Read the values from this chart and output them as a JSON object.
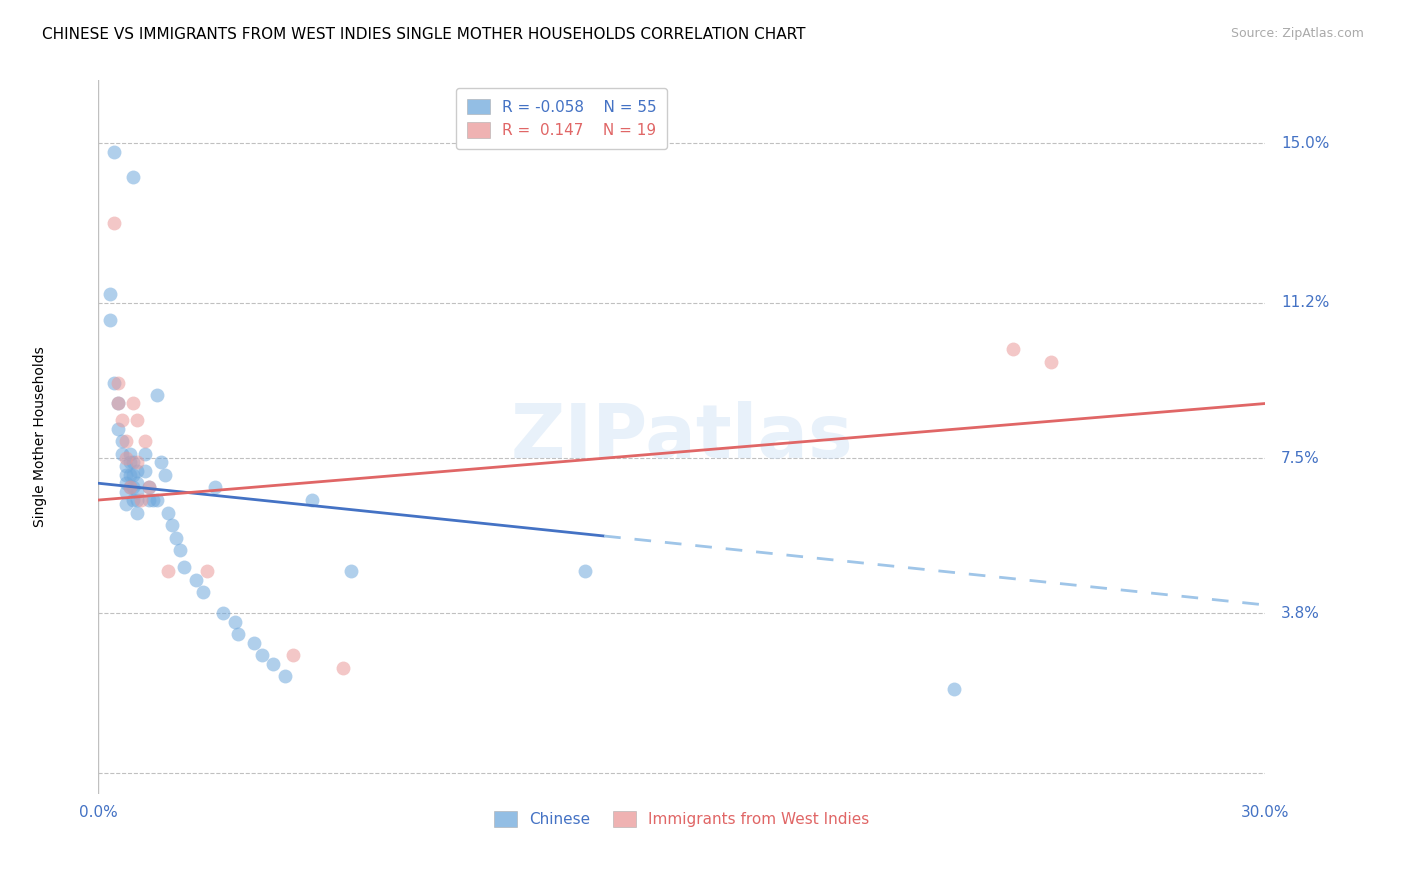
{
  "title": "CHINESE VS IMMIGRANTS FROM WEST INDIES SINGLE MOTHER HOUSEHOLDS CORRELATION CHART",
  "source": "Source: ZipAtlas.com",
  "ylabel": "Single Mother Households",
  "watermark": "ZIPatlas",
  "xlim": [
    0.0,
    0.3
  ],
  "ylim": [
    -0.005,
    0.165
  ],
  "ytick_vals": [
    0.0,
    0.038,
    0.075,
    0.112,
    0.15
  ],
  "ytick_labels": [
    "",
    "3.8%",
    "7.5%",
    "11.2%",
    "15.0%"
  ],
  "xtick_positions": [
    0.0,
    0.075,
    0.15,
    0.225,
    0.3
  ],
  "xtick_labels": [
    "0.0%",
    "",
    "",
    "",
    "30.0%"
  ],
  "label_chinese": "Chinese",
  "label_westindies": "Immigrants from West Indies",
  "color_chinese": "#6fa8dc",
  "color_westindies": "#ea9999",
  "trendline_chinese_solid_color": "#4472c4",
  "trendline_westindies_color": "#e06666",
  "trendline_chinese_dashed_color": "#9fc5e8",
  "background_color": "#ffffff",
  "grid_color": "#c0c0c0",
  "chinese_x": [
    0.004,
    0.009,
    0.003,
    0.003,
    0.004,
    0.005,
    0.005,
    0.006,
    0.006,
    0.007,
    0.007,
    0.007,
    0.007,
    0.007,
    0.008,
    0.008,
    0.008,
    0.008,
    0.009,
    0.009,
    0.009,
    0.009,
    0.01,
    0.01,
    0.01,
    0.01,
    0.01,
    0.012,
    0.012,
    0.013,
    0.013,
    0.014,
    0.015,
    0.015,
    0.016,
    0.017,
    0.018,
    0.019,
    0.02,
    0.021,
    0.022,
    0.025,
    0.027,
    0.03,
    0.032,
    0.035,
    0.036,
    0.04,
    0.042,
    0.045,
    0.048,
    0.055,
    0.065,
    0.125,
    0.22
  ],
  "chinese_y": [
    0.148,
    0.142,
    0.114,
    0.108,
    0.093,
    0.088,
    0.082,
    0.079,
    0.076,
    0.073,
    0.071,
    0.069,
    0.067,
    0.064,
    0.076,
    0.074,
    0.071,
    0.068,
    0.074,
    0.071,
    0.068,
    0.065,
    0.072,
    0.069,
    0.067,
    0.065,
    0.062,
    0.076,
    0.072,
    0.068,
    0.065,
    0.065,
    0.09,
    0.065,
    0.074,
    0.071,
    0.062,
    0.059,
    0.056,
    0.053,
    0.049,
    0.046,
    0.043,
    0.068,
    0.038,
    0.036,
    0.033,
    0.031,
    0.028,
    0.026,
    0.023,
    0.065,
    0.048,
    0.048,
    0.02
  ],
  "westindies_x": [
    0.004,
    0.005,
    0.005,
    0.006,
    0.007,
    0.007,
    0.008,
    0.009,
    0.01,
    0.01,
    0.011,
    0.012,
    0.013,
    0.018,
    0.028,
    0.05,
    0.063,
    0.235,
    0.245
  ],
  "westindies_y": [
    0.131,
    0.093,
    0.088,
    0.084,
    0.079,
    0.075,
    0.068,
    0.088,
    0.084,
    0.074,
    0.065,
    0.079,
    0.068,
    0.048,
    0.048,
    0.028,
    0.025,
    0.101,
    0.098
  ],
  "ch_trend_x0": 0.0,
  "ch_trend_y0": 0.069,
  "ch_trend_x_solid_end": 0.13,
  "ch_trend_x_dashed_end": 0.3,
  "ch_trend_y_end": 0.04,
  "wi_trend_x0": 0.0,
  "wi_trend_y0": 0.065,
  "wi_trend_x1": 0.3,
  "wi_trend_y1": 0.088,
  "marker_size": 100,
  "marker_alpha": 0.55,
  "title_fontsize": 11,
  "axis_label_fontsize": 10,
  "tick_fontsize": 11,
  "legend_fontsize": 11,
  "source_fontsize": 9
}
